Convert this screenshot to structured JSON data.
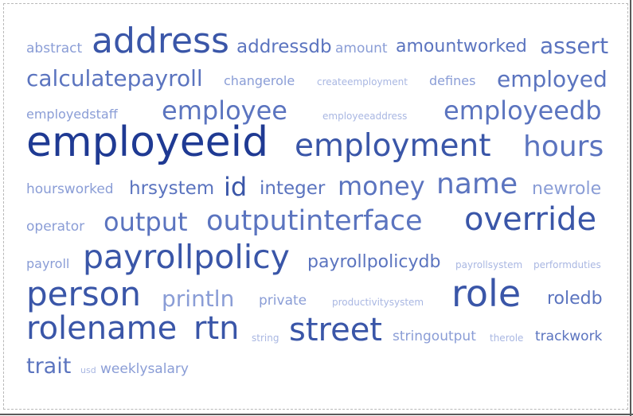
{
  "colors": {
    "darkest": "#1f3a93",
    "dark": "#3a56a8",
    "mid": "#5b74bf",
    "light": "#8a9dd6",
    "lightest": "#a9b7e2"
  },
  "cloud": {
    "words": [
      {
        "text": "abstract",
        "tone": "light"
      },
      {
        "text": "address",
        "tone": "dark"
      },
      {
        "text": "addressdb",
        "tone": "mid"
      },
      {
        "text": "amount",
        "tone": "light"
      },
      {
        "text": "amountworked",
        "tone": "mid"
      },
      {
        "text": "assert",
        "tone": "mid"
      },
      {
        "text": "calculatepayroll",
        "tone": "mid"
      },
      {
        "text": "changerole",
        "tone": "light"
      },
      {
        "text": "createemployment",
        "tone": "lightest"
      },
      {
        "text": "defines",
        "tone": "light"
      },
      {
        "text": "employed",
        "tone": "mid"
      },
      {
        "text": "employedstaff",
        "tone": "light"
      },
      {
        "text": "employee",
        "tone": "mid"
      },
      {
        "text": "employeeaddress",
        "tone": "lightest"
      },
      {
        "text": "employeedb",
        "tone": "mid"
      },
      {
        "text": "employeeid",
        "tone": "darkest"
      },
      {
        "text": "employment",
        "tone": "dark"
      },
      {
        "text": "hours",
        "tone": "mid"
      },
      {
        "text": "hoursworked",
        "tone": "light"
      },
      {
        "text": "hrsystem",
        "tone": "mid"
      },
      {
        "text": "id",
        "tone": "dark"
      },
      {
        "text": "integer",
        "tone": "mid"
      },
      {
        "text": "money",
        "tone": "mid"
      },
      {
        "text": "name",
        "tone": "mid"
      },
      {
        "text": "newrole",
        "tone": "light"
      },
      {
        "text": "operator",
        "tone": "light"
      },
      {
        "text": "output",
        "tone": "mid"
      },
      {
        "text": "outputinterface",
        "tone": "mid"
      },
      {
        "text": "override",
        "tone": "dark"
      },
      {
        "text": "payroll",
        "tone": "light"
      },
      {
        "text": "payrollpolicy",
        "tone": "dark"
      },
      {
        "text": "payrollpolicydb",
        "tone": "mid"
      },
      {
        "text": "payrollsystem",
        "tone": "lightest"
      },
      {
        "text": "performduties",
        "tone": "lightest"
      },
      {
        "text": "person",
        "tone": "dark"
      },
      {
        "text": "println",
        "tone": "light"
      },
      {
        "text": "private",
        "tone": "light"
      },
      {
        "text": "productivitysystem",
        "tone": "lightest"
      },
      {
        "text": "role",
        "tone": "dark"
      },
      {
        "text": "roledb",
        "tone": "mid"
      },
      {
        "text": "rolename",
        "tone": "dark"
      },
      {
        "text": "rtn",
        "tone": "dark"
      },
      {
        "text": "string",
        "tone": "dark"
      },
      {
        "text": "street",
        "tone": "lightest"
      },
      {
        "text": "stringoutput",
        "tone": "light"
      },
      {
        "text": "therole",
        "tone": "lightest"
      },
      {
        "text": "trackwork",
        "tone": "mid"
      },
      {
        "text": "trait",
        "tone": "mid"
      },
      {
        "text": "usd",
        "tone": "lightest"
      },
      {
        "text": "weeklysalary",
        "tone": "light"
      }
    ]
  }
}
